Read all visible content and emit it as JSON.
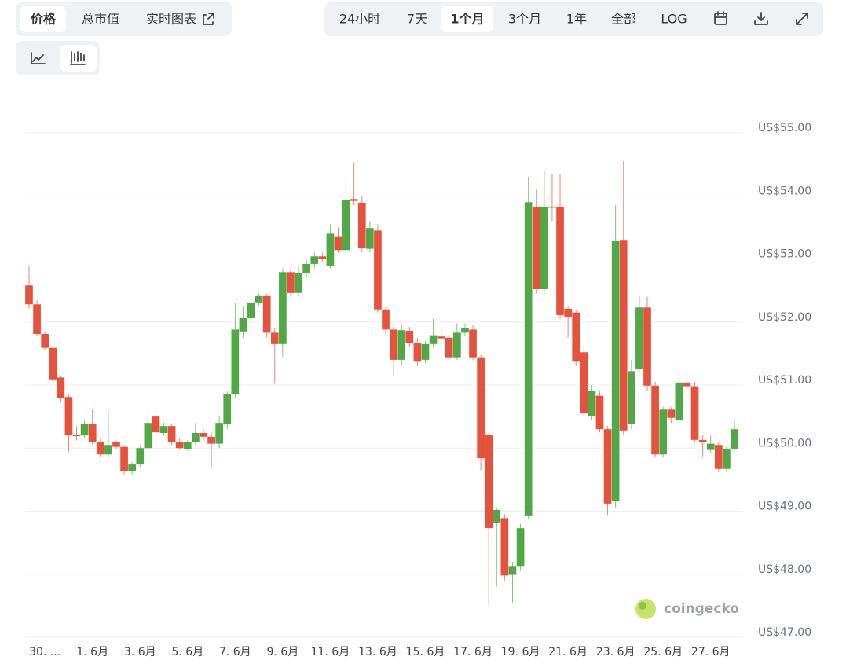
{
  "ui": {
    "view_tabs": [
      "价格",
      "总市值",
      "实时图表"
    ],
    "range_tabs": [
      "24小时",
      "7天",
      "1个月",
      "3个月",
      "1年",
      "全部",
      "LOG"
    ],
    "watermark": "coingecko"
  },
  "chart_data": {
    "type": "candlestick",
    "categories": [
      null,
      null,
      "30. ...",
      null,
      null,
      null,
      null,
      null,
      "1. 6月",
      null,
      null,
      null,
      null,
      null,
      "3. 6月",
      null,
      null,
      null,
      null,
      null,
      "5. 6月",
      null,
      null,
      null,
      null,
      null,
      "7. 6月",
      null,
      null,
      null,
      null,
      null,
      "9. 6月",
      null,
      null,
      null,
      null,
      null,
      "11. 6月",
      null,
      null,
      null,
      null,
      null,
      "13. 6月",
      null,
      null,
      null,
      null,
      null,
      "15. 6月",
      null,
      null,
      null,
      null,
      null,
      "17. 6月",
      null,
      null,
      null,
      null,
      null,
      "19. 6月",
      null,
      null,
      null,
      null,
      null,
      "21. 6月",
      null,
      null,
      null,
      null,
      null,
      "23. 6月",
      null,
      null,
      null,
      null,
      null,
      "25. 6月",
      null,
      null,
      null,
      null,
      null,
      "27. 6月",
      null,
      null,
      null
    ],
    "open": [
      52.58,
      52.28,
      51.81,
      51.59,
      51.12,
      50.81,
      50.21,
      50.2,
      50.38,
      50.09,
      49.9,
      50.09,
      50.02,
      49.63,
      49.74,
      50.0,
      50.5,
      50.24,
      50.35,
      50.09,
      49.99,
      50.09,
      50.24,
      50.18,
      50.07,
      50.38,
      50.85,
      51.85,
      52.06,
      52.31,
      52.41,
      51.83,
      51.65,
      52.79,
      52.46,
      52.77,
      52.92,
      53.04,
      52.89,
      53.36,
      53.14,
      53.95,
      53.88,
      53.16,
      53.45,
      52.2,
      51.88,
      51.4,
      51.86,
      51.66,
      51.4,
      51.65,
      51.77,
      51.75,
      51.44,
      51.83,
      51.88,
      51.44,
      50.21,
      48.82,
      48.89,
      47.99,
      48.13,
      48.92,
      53.83,
      52.52,
      53.83,
      53.83,
      52.21,
      52.15,
      51.52,
      50.5,
      50.83,
      50.3,
      49.16,
      53.29,
      50.38,
      51.25,
      52.23,
      50.99,
      49.9,
      50.61,
      50.44,
      51.04,
      50.98,
      50.13,
      49.97,
      50.05,
      49.67,
      49.98
    ],
    "high": [
      52.89,
      52.35,
      51.85,
      51.62,
      51.15,
      50.85,
      50.35,
      50.45,
      50.62,
      50.15,
      50.6,
      50.12,
      50.05,
      49.78,
      50.05,
      50.6,
      50.55,
      50.4,
      50.38,
      50.15,
      50.12,
      50.4,
      50.3,
      50.25,
      50.5,
      50.9,
      52.3,
      52.25,
      52.38,
      52.45,
      52.45,
      51.9,
      52.85,
      52.85,
      52.9,
      53.0,
      53.1,
      53.1,
      53.55,
      53.5,
      54.3,
      54.52,
      54.0,
      53.6,
      53.55,
      52.25,
      51.95,
      51.95,
      51.92,
      51.75,
      51.7,
      52.05,
      51.95,
      51.8,
      51.98,
      51.98,
      51.95,
      51.48,
      50.25,
      49.05,
      48.95,
      48.2,
      48.8,
      54.3,
      54.1,
      54.4,
      54.35,
      54.35,
      52.25,
      52.2,
      51.6,
      51.0,
      50.9,
      50.35,
      53.85,
      54.55,
      51.4,
      52.4,
      52.4,
      51.05,
      50.65,
      50.65,
      51.3,
      51.1,
      51.05,
      50.2,
      50.2,
      50.1,
      50.05,
      50.45
    ],
    "low": [
      52.21,
      51.78,
      51.55,
      51.05,
      50.72,
      49.94,
      50.12,
      50.15,
      50.05,
      49.86,
      49.85,
      49.98,
      49.58,
      49.57,
      49.7,
      49.95,
      50.2,
      50.2,
      50.05,
      49.97,
      49.96,
      50.05,
      50.12,
      49.68,
      50.0,
      50.3,
      50.8,
      51.75,
      52.0,
      52.25,
      51.75,
      51.02,
      51.45,
      52.4,
      52.4,
      52.7,
      52.85,
      52.95,
      52.85,
      53.1,
      53.1,
      53.85,
      53.1,
      53.1,
      52.15,
      51.8,
      51.15,
      51.3,
      51.6,
      51.3,
      51.35,
      51.6,
      51.7,
      51.4,
      51.4,
      51.78,
      51.4,
      49.65,
      47.49,
      47.8,
      47.9,
      47.55,
      48.05,
      48.88,
      52.45,
      52.45,
      53.6,
      52.05,
      51.75,
      51.3,
      50.5,
      50.45,
      50.25,
      48.93,
      49.05,
      50.2,
      50.3,
      51.2,
      50.9,
      49.85,
      49.85,
      50.4,
      50.4,
      50.95,
      50.1,
      49.85,
      49.92,
      49.62,
      49.62,
      49.95
    ],
    "close": [
      52.28,
      51.81,
      51.59,
      51.09,
      50.8,
      50.2,
      50.19,
      50.38,
      50.09,
      49.9,
      50.05,
      50.02,
      49.63,
      49.74,
      50.0,
      50.4,
      50.25,
      50.35,
      50.09,
      50.0,
      50.09,
      50.24,
      50.18,
      50.07,
      50.4,
      50.85,
      51.88,
      52.06,
      52.31,
      52.41,
      51.83,
      51.65,
      52.79,
      52.46,
      52.77,
      52.92,
      53.04,
      53.0,
      53.4,
      53.14,
      53.94,
      53.92,
      53.18,
      53.49,
      52.2,
      51.88,
      51.4,
      51.87,
      51.66,
      51.37,
      51.65,
      51.79,
      51.74,
      51.44,
      51.83,
      51.9,
      51.44,
      49.84,
      48.73,
      49.02,
      47.98,
      48.13,
      48.73,
      53.9,
      52.52,
      53.83,
      53.82,
      52.11,
      52.08,
      51.37,
      50.55,
      50.91,
      50.3,
      49.12,
      53.28,
      50.28,
      51.22,
      52.23,
      50.99,
      49.9,
      50.61,
      50.48,
      51.04,
      50.98,
      50.13,
      50.09,
      50.07,
      49.67,
      49.98,
      50.3
    ],
    "up_color": "#52a847",
    "down_color": "#e5533d",
    "ylim": [
      47,
      55
    ],
    "yticks": [
      {
        "value": 47,
        "label": "US$47.00"
      },
      {
        "value": 48,
        "label": "US$48.00"
      },
      {
        "value": 49,
        "label": "US$49.00"
      },
      {
        "value": 50,
        "label": "US$50.00"
      },
      {
        "value": 51,
        "label": "US$51.00"
      },
      {
        "value": 52,
        "label": "US$52.00"
      },
      {
        "value": 53,
        "label": "US$53.00"
      },
      {
        "value": 54,
        "label": "US$54.00"
      },
      {
        "value": 55,
        "label": "US$55.00"
      }
    ],
    "grid": true
  }
}
